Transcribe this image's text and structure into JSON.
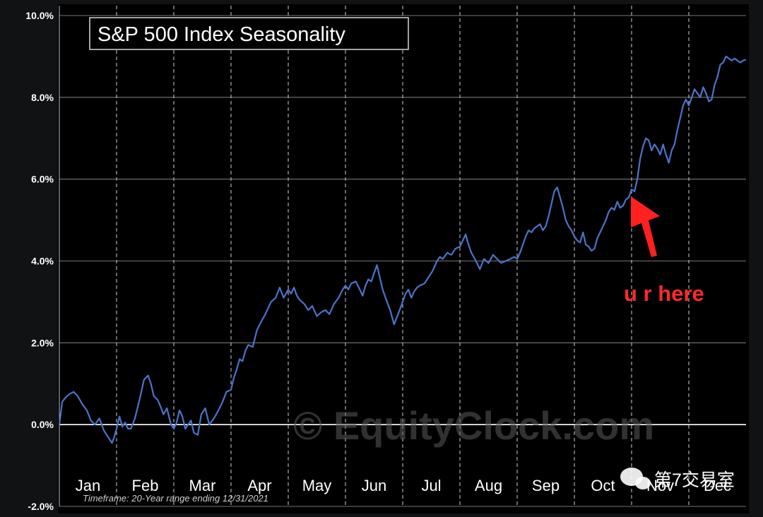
{
  "chart_data": {
    "type": "line",
    "title": "S&P 500 Index Seasonality",
    "xlabel": "",
    "ylabel": "",
    "ylim": [
      -2.0,
      10.0
    ],
    "yticks": [
      "10.0%",
      "8.0%",
      "6.0%",
      "4.0%",
      "2.0%",
      "0.0%",
      "-2.0%"
    ],
    "ytick_values": [
      10,
      8,
      6,
      4,
      2,
      0,
      -2
    ],
    "xlim": [
      0,
      12
    ],
    "months": [
      "Jan",
      "Feb",
      "Mar",
      "Apr",
      "May",
      "Jun",
      "Jul",
      "Aug",
      "Sep",
      "Oct",
      "Nov",
      "Dec"
    ],
    "grid": {
      "horizontal": "solid",
      "vertical": "dashed"
    },
    "series": [
      {
        "x": [
          0.0,
          0.05,
          0.1,
          0.18,
          0.25,
          0.32,
          0.4,
          0.48,
          0.55,
          0.62,
          0.7,
          0.78,
          0.85,
          0.92,
          0.96,
          1.0,
          1.05,
          1.1,
          1.15,
          1.2,
          1.25,
          1.32,
          1.4,
          1.48,
          1.55,
          1.6,
          1.65,
          1.72,
          1.78,
          1.82,
          1.88,
          1.95,
          2.0,
          2.05,
          2.1,
          2.15,
          2.2,
          2.25,
          2.3,
          2.35,
          2.42,
          2.48,
          2.55,
          2.62,
          2.7,
          2.78,
          2.85,
          2.92,
          3.0,
          3.05,
          3.1,
          3.15,
          3.2,
          3.25,
          3.3,
          3.38,
          3.45,
          3.52,
          3.6,
          3.65,
          3.7,
          3.78,
          3.85,
          3.92,
          4.0,
          4.05,
          4.1,
          4.15,
          4.2,
          4.28,
          4.35,
          4.42,
          4.5,
          4.58,
          4.65,
          4.72,
          4.8,
          4.88,
          4.95,
          5.0,
          5.05,
          5.1,
          5.18,
          5.25,
          5.3,
          5.35,
          5.4,
          5.45,
          5.5,
          5.55,
          5.6,
          5.65,
          5.7,
          5.78,
          5.85,
          5.92,
          6.0,
          6.05,
          6.1,
          6.15,
          6.2,
          6.25,
          6.3,
          6.38,
          6.45,
          6.52,
          6.6,
          6.65,
          6.7,
          6.78,
          6.85,
          6.92,
          7.0,
          7.05,
          7.1,
          7.15,
          7.2,
          7.28,
          7.35,
          7.42,
          7.5,
          7.58,
          7.65,
          7.72,
          7.8,
          7.88,
          7.95,
          8.0,
          8.05,
          8.1,
          8.15,
          8.2,
          8.25,
          8.3,
          8.35,
          8.4,
          8.45,
          8.5,
          8.55,
          8.6,
          8.65,
          8.7,
          8.75,
          8.8,
          8.85,
          8.9,
          8.95,
          9.0,
          9.05,
          9.1,
          9.15,
          9.2,
          9.25,
          9.3,
          9.35,
          9.4,
          9.45,
          9.5,
          9.55,
          9.6,
          9.65,
          9.7,
          9.75,
          9.8,
          9.85,
          9.9,
          9.95,
          10.0,
          10.05,
          10.1,
          10.15,
          10.2,
          10.25,
          10.3,
          10.35,
          10.4,
          10.45,
          10.5,
          10.55,
          10.6,
          10.65,
          10.7,
          10.75,
          10.8,
          10.85,
          10.9,
          10.95,
          11.0,
          11.05,
          11.1,
          11.15,
          11.2,
          11.25,
          11.3,
          11.35,
          11.4,
          11.45,
          11.5,
          11.55,
          11.6,
          11.65,
          11.7,
          11.75,
          11.8,
          11.85,
          11.9,
          11.95,
          12.0
        ],
        "y": [
          0.0,
          0.55,
          0.65,
          0.75,
          0.8,
          0.7,
          0.5,
          0.35,
          0.1,
          0.0,
          0.15,
          -0.15,
          -0.3,
          -0.45,
          -0.3,
          -0.1,
          0.2,
          -0.05,
          0.05,
          -0.1,
          -0.1,
          0.15,
          0.6,
          1.1,
          1.2,
          1.0,
          0.7,
          0.6,
          0.4,
          0.25,
          0.4,
          0.0,
          -0.1,
          0.05,
          0.35,
          0.2,
          -0.1,
          0.0,
          0.1,
          -0.2,
          -0.25,
          0.25,
          0.4,
          0.0,
          0.15,
          0.35,
          0.55,
          0.8,
          0.85,
          1.15,
          1.35,
          1.6,
          1.55,
          1.8,
          1.95,
          1.9,
          2.3,
          2.5,
          2.7,
          2.85,
          3.0,
          3.1,
          3.35,
          3.1,
          3.3,
          3.2,
          3.35,
          3.15,
          3.05,
          2.95,
          2.8,
          2.9,
          2.65,
          2.75,
          2.8,
          2.7,
          2.95,
          3.1,
          3.3,
          3.4,
          3.3,
          3.45,
          3.5,
          3.3,
          3.15,
          3.4,
          3.55,
          3.5,
          3.7,
          3.9,
          3.6,
          3.3,
          3.1,
          2.8,
          2.45,
          2.7,
          3.0,
          3.2,
          3.3,
          3.1,
          3.25,
          3.35,
          3.4,
          3.45,
          3.6,
          3.75,
          4.0,
          4.1,
          4.05,
          4.2,
          4.15,
          4.3,
          4.35,
          4.5,
          4.65,
          4.4,
          4.2,
          4.0,
          3.8,
          4.05,
          3.95,
          4.15,
          4.05,
          3.95,
          4.0,
          4.05,
          4.1,
          4.05,
          4.2,
          4.4,
          4.6,
          4.75,
          4.7,
          4.8,
          4.85,
          4.9,
          4.75,
          4.85,
          5.1,
          5.4,
          5.7,
          5.8,
          5.55,
          5.3,
          5.0,
          4.85,
          4.75,
          4.6,
          4.5,
          4.45,
          4.7,
          4.4,
          4.35,
          4.25,
          4.3,
          4.55,
          4.7,
          4.85,
          5.0,
          5.2,
          5.3,
          5.25,
          5.45,
          5.3,
          5.35,
          5.5,
          5.55,
          5.75,
          5.7,
          6.0,
          6.5,
          6.8,
          7.0,
          6.95,
          6.7,
          6.85,
          6.75,
          6.6,
          6.85,
          6.6,
          6.4,
          6.7,
          6.85,
          7.2,
          7.5,
          7.8,
          7.95,
          7.8,
          8.0,
          8.2,
          8.1,
          8.0,
          8.25,
          8.1,
          7.9,
          7.95,
          8.3,
          8.5,
          8.8,
          8.85,
          9.0,
          8.95,
          8.9,
          8.95,
          8.9,
          8.85,
          8.9,
          8.92
        ]
      }
    ],
    "annotations": {
      "arrow_text": "u r here",
      "timeframe": "Timeframe: 20-Year range ending 12/31/2021",
      "watermark": "© EquityClock.com",
      "brand": "第7交易室"
    },
    "colors": {
      "background": "#000000",
      "page": "#111214",
      "line": "#4a74c9",
      "arrow": "#ff2020",
      "grid": "#d0d0d0",
      "axis_text": "#ffffff"
    }
  }
}
